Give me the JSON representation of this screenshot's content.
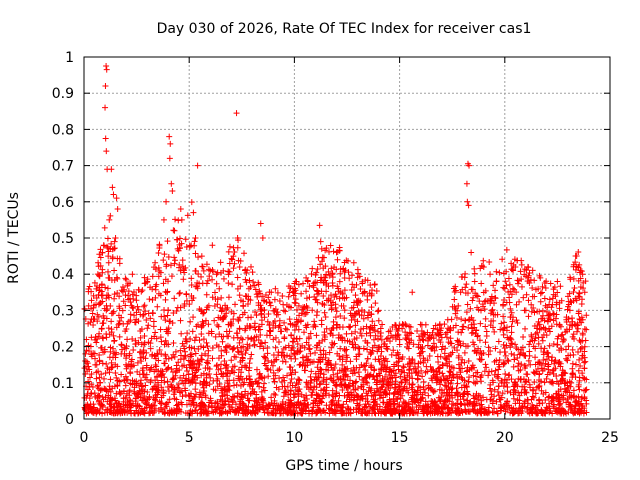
{
  "chart_data": {
    "type": "scatter",
    "title": "Day 030 of 2026, Rate Of TEC Index for receiver cas1",
    "xlabel": "GPS time / hours",
    "ylabel": "ROTI / TECUs",
    "xlim": [
      0,
      25
    ],
    "ylim": [
      0,
      1
    ],
    "xticks": [
      0,
      5,
      10,
      15,
      20,
      25
    ],
    "yticks": [
      0,
      0.1,
      0.2,
      0.3,
      0.4,
      0.5,
      0.6,
      0.7,
      0.8,
      0.9,
      1
    ],
    "xtick_labels": [
      "0",
      "5",
      "10",
      "15",
      "20",
      "25"
    ],
    "ytick_labels": [
      "0",
      "0.1",
      "0.2",
      "0.3",
      "0.4",
      "0.5",
      "0.6",
      "0.7",
      "0.8",
      "0.9",
      "1"
    ],
    "grid": true,
    "marker": "+",
    "marker_color": "#ff0000",
    "series": [
      {
        "name": "cas1",
        "points": [
          [
            1.05,
            0.975
          ],
          [
            1.08,
            0.965
          ],
          [
            1.02,
            0.92
          ],
          [
            1.0,
            0.86
          ],
          [
            1.03,
            0.775
          ],
          [
            1.06,
            0.74
          ],
          [
            1.1,
            0.69
          ],
          [
            1.3,
            0.69
          ],
          [
            1.35,
            0.64
          ],
          [
            1.4,
            0.62
          ],
          [
            1.55,
            0.61
          ],
          [
            1.6,
            0.58
          ],
          [
            1.2,
            0.55
          ],
          [
            1.5,
            0.5
          ],
          [
            1.7,
            0.43
          ],
          [
            1.15,
            0.45
          ],
          [
            1.25,
            0.47
          ],
          [
            3.9,
            0.6
          ],
          [
            4.05,
            0.78
          ],
          [
            4.1,
            0.76
          ],
          [
            4.08,
            0.72
          ],
          [
            4.15,
            0.65
          ],
          [
            4.2,
            0.63
          ],
          [
            3.8,
            0.55
          ],
          [
            4.3,
            0.52
          ],
          [
            4.45,
            0.47
          ],
          [
            4.6,
            0.58
          ],
          [
            4.65,
            0.55
          ],
          [
            5.4,
            0.7
          ],
          [
            5.2,
            0.57
          ],
          [
            5.3,
            0.5
          ],
          [
            5.6,
            0.45
          ],
          [
            6.1,
            0.48
          ],
          [
            6.3,
            0.4
          ],
          [
            7.25,
            0.845
          ],
          [
            7.3,
            0.5
          ],
          [
            7.1,
            0.45
          ],
          [
            7.4,
            0.42
          ],
          [
            8.4,
            0.54
          ],
          [
            8.5,
            0.5
          ],
          [
            2.3,
            0.4
          ],
          [
            2.1,
            0.33
          ],
          [
            3.0,
            0.38
          ],
          [
            8.9,
            0.35
          ],
          [
            9.5,
            0.3
          ],
          [
            10.1,
            0.38
          ],
          [
            11.2,
            0.535
          ],
          [
            11.25,
            0.49
          ],
          [
            11.3,
            0.47
          ],
          [
            11.0,
            0.33
          ],
          [
            11.8,
            0.4
          ],
          [
            12.2,
            0.35
          ],
          [
            13.5,
            0.28
          ],
          [
            14.0,
            0.3
          ],
          [
            15.6,
            0.35
          ],
          [
            18.25,
            0.705
          ],
          [
            18.3,
            0.7
          ],
          [
            18.2,
            0.65
          ],
          [
            18.22,
            0.6
          ],
          [
            18.28,
            0.59
          ],
          [
            18.4,
            0.46
          ],
          [
            17.6,
            0.33
          ],
          [
            17.9,
            0.35
          ],
          [
            19.0,
            0.42
          ],
          [
            19.3,
            0.4
          ],
          [
            19.6,
            0.38
          ],
          [
            20.0,
            0.36
          ],
          [
            20.3,
            0.43
          ],
          [
            20.5,
            0.42
          ],
          [
            21.0,
            0.3
          ],
          [
            22.1,
            0.25
          ],
          [
            22.5,
            0.38
          ],
          [
            23.1,
            0.26
          ],
          [
            23.5,
            0.42
          ],
          [
            23.6,
            0.41
          ],
          [
            23.7,
            0.4
          ],
          [
            23.8,
            0.35
          ]
        ]
      }
    ]
  }
}
